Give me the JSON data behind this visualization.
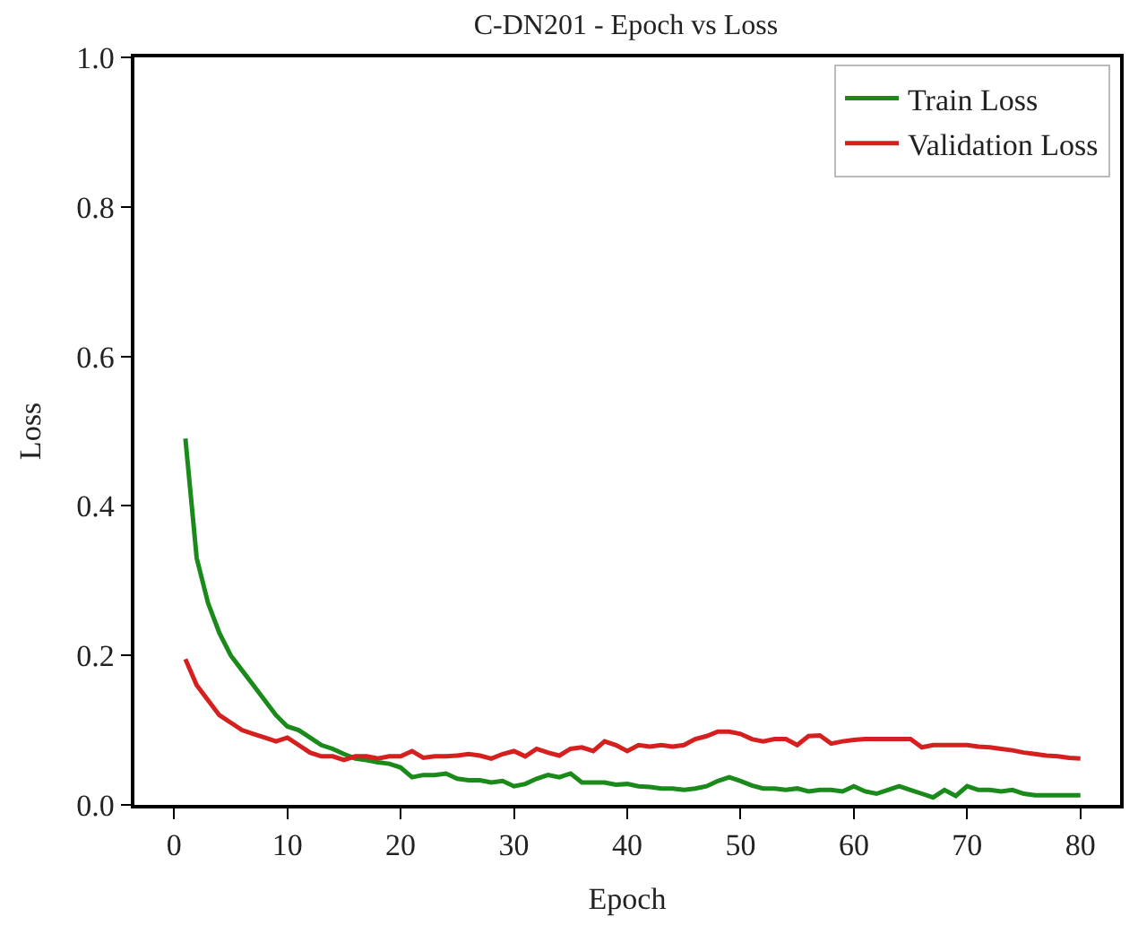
{
  "chart_data": {
    "type": "line",
    "title": "C-DN201 - Epoch vs Loss",
    "xlabel": "Epoch",
    "ylabel": "Loss",
    "x": [
      1,
      2,
      3,
      4,
      5,
      6,
      7,
      8,
      9,
      10,
      11,
      12,
      13,
      14,
      15,
      16,
      17,
      18,
      19,
      20,
      21,
      22,
      23,
      24,
      25,
      26,
      27,
      28,
      29,
      30,
      31,
      32,
      33,
      34,
      35,
      36,
      37,
      38,
      39,
      40,
      41,
      42,
      43,
      44,
      45,
      46,
      47,
      48,
      49,
      50,
      51,
      52,
      53,
      54,
      55,
      56,
      57,
      58,
      59,
      60,
      61,
      62,
      63,
      64,
      65,
      66,
      67,
      68,
      69,
      70,
      71,
      72,
      73,
      74,
      75,
      76,
      77,
      78,
      79,
      80
    ],
    "series": [
      {
        "name": "Train Loss",
        "color": "#1a8a1a",
        "values": [
          0.49,
          0.33,
          0.27,
          0.23,
          0.2,
          0.18,
          0.16,
          0.14,
          0.12,
          0.105,
          0.1,
          0.09,
          0.08,
          0.075,
          0.068,
          0.062,
          0.06,
          0.057,
          0.055,
          0.05,
          0.037,
          0.04,
          0.04,
          0.042,
          0.035,
          0.033,
          0.033,
          0.03,
          0.032,
          0.025,
          0.028,
          0.035,
          0.04,
          0.037,
          0.042,
          0.03,
          0.03,
          0.03,
          0.027,
          0.028,
          0.025,
          0.024,
          0.022,
          0.022,
          0.02,
          0.022,
          0.025,
          0.032,
          0.037,
          0.032,
          0.026,
          0.022,
          0.022,
          0.02,
          0.022,
          0.018,
          0.02,
          0.02,
          0.018,
          0.025,
          0.018,
          0.015,
          0.02,
          0.025,
          0.02,
          0.015,
          0.01,
          0.02,
          0.012,
          0.025,
          0.02,
          0.02,
          0.018,
          0.02,
          0.015,
          0.013,
          0.013,
          0.013,
          0.013,
          0.013
        ]
      },
      {
        "name": "Validation Loss",
        "color": "#d62020",
        "values": [
          0.195,
          0.16,
          0.14,
          0.12,
          0.11,
          0.1,
          0.095,
          0.09,
          0.085,
          0.09,
          0.08,
          0.07,
          0.065,
          0.065,
          0.06,
          0.065,
          0.065,
          0.062,
          0.065,
          0.065,
          0.072,
          0.063,
          0.065,
          0.065,
          0.066,
          0.068,
          0.066,
          0.062,
          0.068,
          0.072,
          0.065,
          0.075,
          0.07,
          0.066,
          0.075,
          0.077,
          0.072,
          0.085,
          0.08,
          0.072,
          0.08,
          0.078,
          0.08,
          0.078,
          0.08,
          0.088,
          0.092,
          0.098,
          0.098,
          0.095,
          0.088,
          0.085,
          0.088,
          0.088,
          0.08,
          0.092,
          0.093,
          0.082,
          0.085,
          0.087,
          0.088,
          0.088,
          0.088,
          0.088,
          0.088,
          0.077,
          0.08,
          0.08,
          0.08,
          0.08,
          0.078,
          0.077,
          0.075,
          0.073,
          0.07,
          0.068,
          0.066,
          0.065,
          0.063,
          0.062
        ]
      }
    ],
    "xlim": [
      -3.5,
      83.5
    ],
    "xticks": [
      0,
      10,
      20,
      30,
      40,
      50,
      60,
      70,
      80
    ],
    "ylim": [
      0,
      1.0
    ],
    "yticks": [
      {
        "value": 0,
        "label": "0.0"
      },
      {
        "value": 0.2,
        "label": "0.2"
      },
      {
        "value": 0.4,
        "label": "0.4"
      },
      {
        "value": 0.6,
        "label": "0.6"
      },
      {
        "value": 0.8,
        "label": "0.8"
      },
      {
        "value": 1.0,
        "label": "1.0"
      }
    ],
    "legend": "top right",
    "grid": false,
    "line_style": "solid",
    "marker": "none"
  }
}
